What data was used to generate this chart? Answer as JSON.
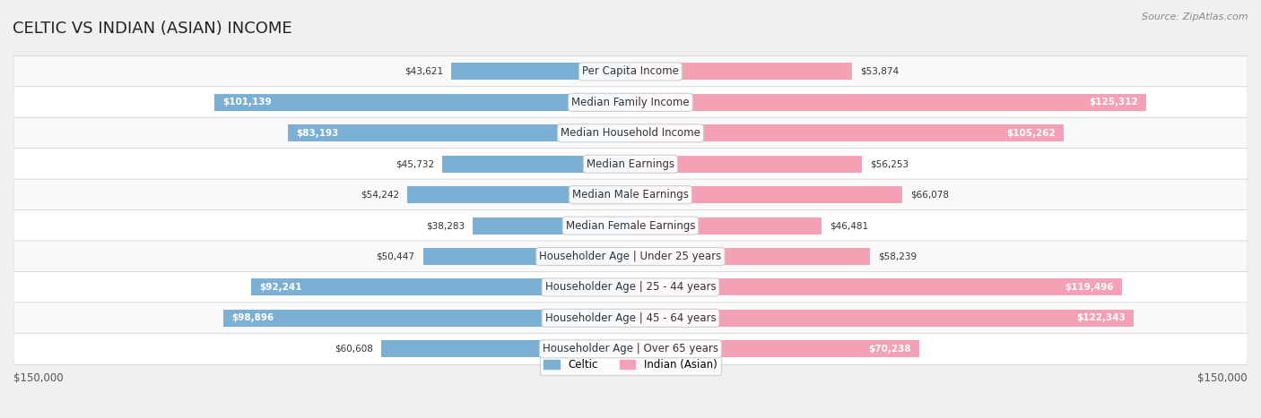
{
  "title": "CELTIC VS INDIAN (ASIAN) INCOME",
  "source": "Source: ZipAtlas.com",
  "categories": [
    "Per Capita Income",
    "Median Family Income",
    "Median Household Income",
    "Median Earnings",
    "Median Male Earnings",
    "Median Female Earnings",
    "Householder Age | Under 25 years",
    "Householder Age | 25 - 44 years",
    "Householder Age | 45 - 64 years",
    "Householder Age | Over 65 years"
  ],
  "celtic_values": [
    43621,
    101139,
    83193,
    45732,
    54242,
    38283,
    50447,
    92241,
    98896,
    60608
  ],
  "indian_values": [
    53874,
    125312,
    105262,
    56253,
    66078,
    46481,
    58239,
    119496,
    122343,
    70238
  ],
  "celtic_color": "#7bafd4",
  "celtic_color_dark": "#5b9dc8",
  "indian_color": "#f4a0b5",
  "indian_color_dark": "#e8728f",
  "max_value": 150000,
  "bar_height": 0.55,
  "background_color": "#f0f0f0",
  "row_color_light": "#f9f9f9",
  "row_color_dark": "#ffffff",
  "x_label_left": "$150,000",
  "x_label_right": "$150,000",
  "title_fontsize": 13,
  "label_fontsize": 8.5,
  "value_fontsize": 7.5,
  "source_fontsize": 8
}
